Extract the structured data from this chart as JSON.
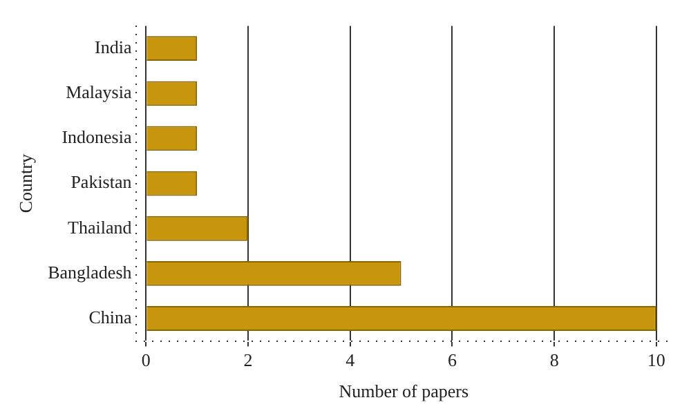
{
  "chart_data": {
    "type": "bar",
    "orientation": "horizontal",
    "xlabel": "Number of papers",
    "ylabel": "Country",
    "categories": [
      "India",
      "Malaysia",
      "Indonesia",
      "Pakistan",
      "Thailand",
      "Bangladesh",
      "China"
    ],
    "values": [
      1,
      1,
      1,
      1,
      2,
      5,
      10
    ],
    "color": "#c8960c",
    "xlim": [
      -0.2,
      10.3
    ],
    "xticks": [
      0,
      2,
      4,
      6,
      8,
      10
    ],
    "grid": "x",
    "legend": false
  }
}
